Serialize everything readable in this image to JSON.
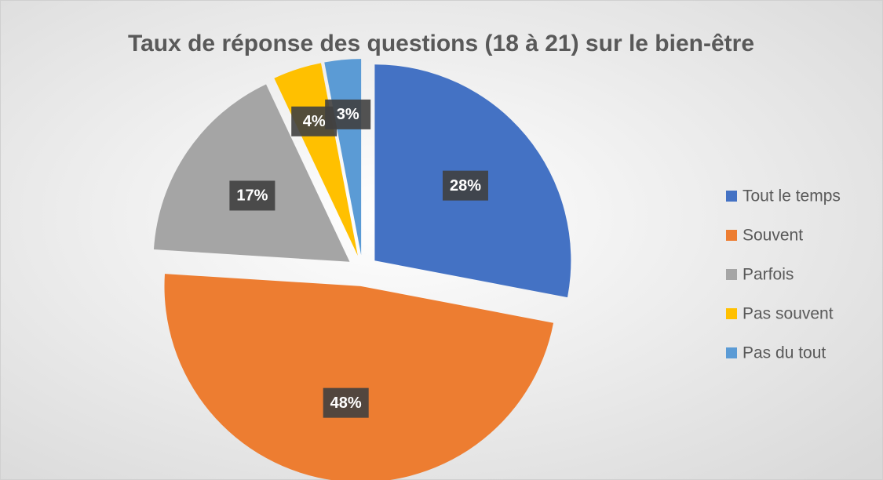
{
  "chart_data": {
    "type": "pie",
    "title": "Taux de réponse des questions (18 à 21) sur le bien-être",
    "categories": [
      "Tout le temps",
      "Souvent",
      "Parfois",
      "Pas souvent",
      "Pas du tout"
    ],
    "values": [
      28,
      48,
      17,
      4,
      3
    ],
    "value_labels": [
      "28%",
      "48%",
      "17%",
      "4%",
      "3%"
    ],
    "colors": [
      "#4472c4",
      "#ed7d31",
      "#a5a5a5",
      "#ffc000",
      "#5b9bd5"
    ],
    "legend": "right"
  }
}
